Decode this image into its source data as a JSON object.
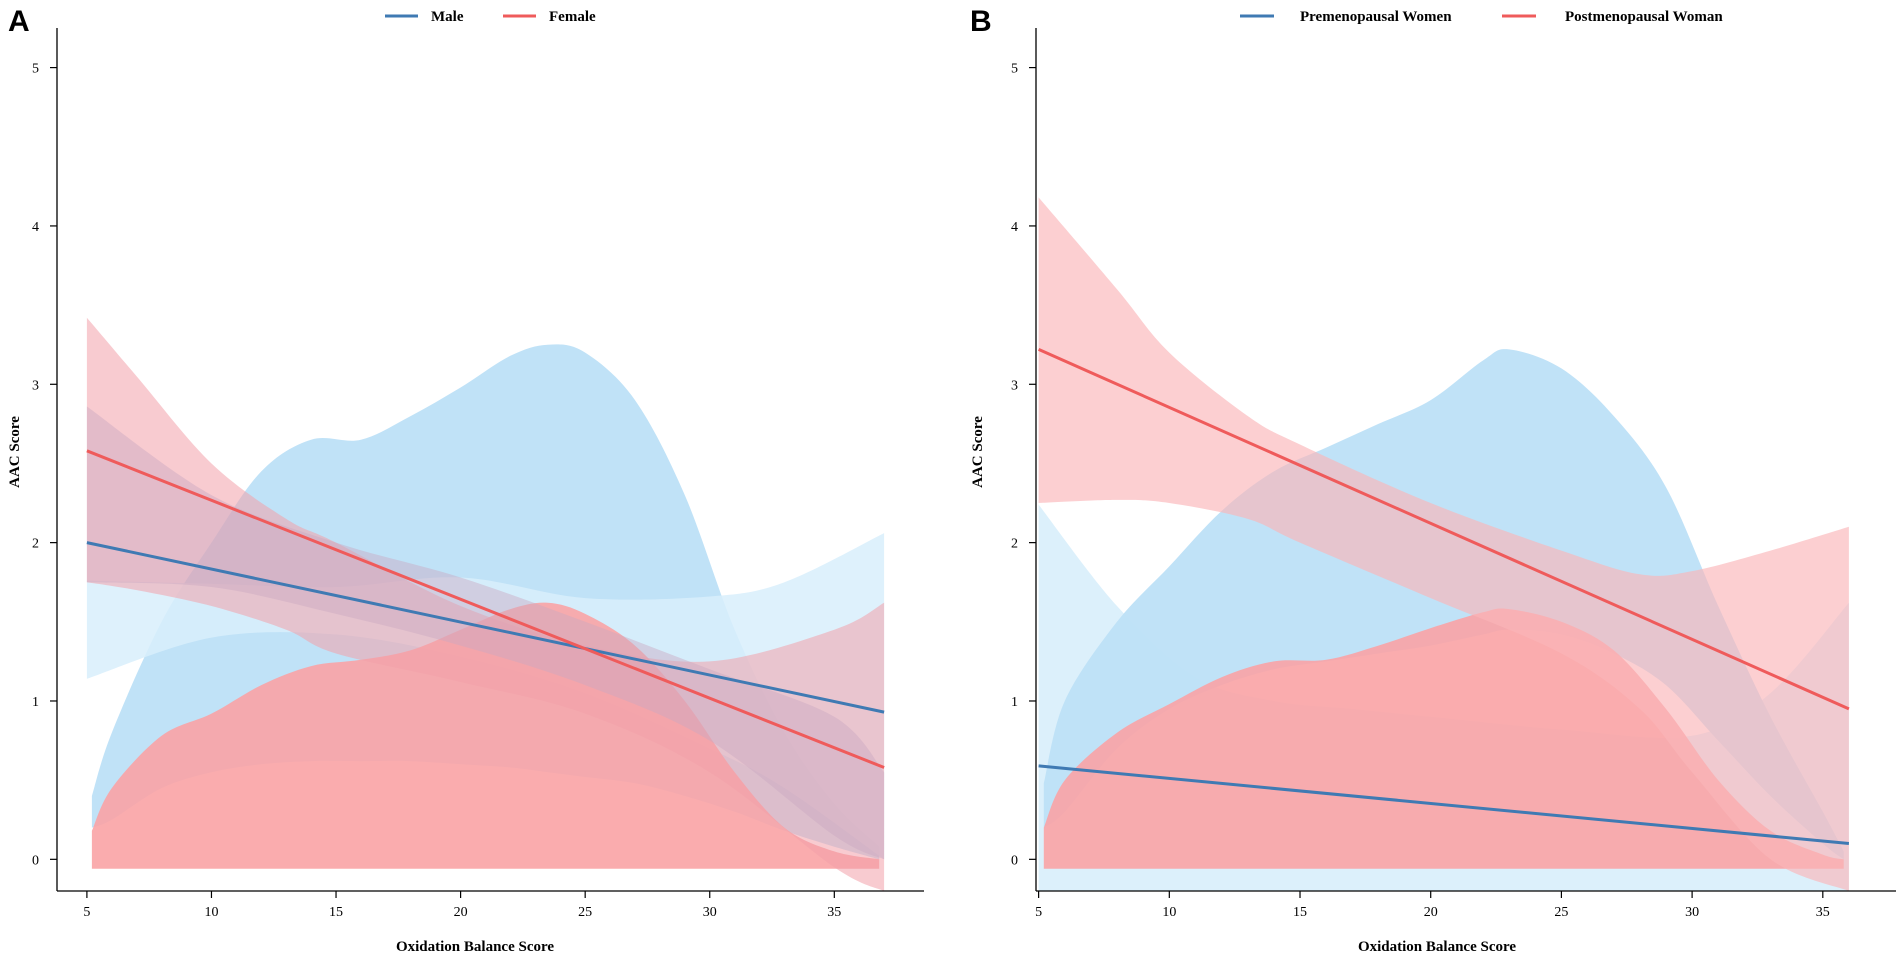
{
  "colors": {
    "blue_line": "#3f7ab3",
    "red_line": "#ef5b5b",
    "blue_fill": "#bde0f7",
    "blue_fill_light": "#d8eefb",
    "red_fill": "#f9a3a5",
    "red_fill_light": "#fcc3c4"
  },
  "chart_data": [
    {
      "type": "line",
      "panel_label": "A",
      "title": "",
      "xlabel": "Oxidation Balance Score",
      "ylabel": "AAC Score",
      "xlim": [
        3.8,
        38.6
      ],
      "ylim": [
        -0.2,
        5.25
      ],
      "xticks": [
        5,
        10,
        15,
        20,
        25,
        30,
        35
      ],
      "yticks": [
        0,
        1,
        2,
        3,
        4,
        5
      ],
      "legend": {
        "position": "top-center",
        "entries": [
          {
            "label": "Male",
            "color": "#3f7ab3"
          },
          {
            "label": "Female",
            "color": "#ef5b5b"
          }
        ]
      },
      "series": [
        {
          "name": "Male",
          "color": "#3f7ab3",
          "x": [
            5,
            37
          ],
          "y": [
            2.0,
            0.93
          ]
        },
        {
          "name": "Female",
          "color": "#ef5b5b",
          "x": [
            5,
            37
          ],
          "y": [
            2.58,
            0.58
          ]
        }
      ],
      "bands": [
        {
          "name": "Male density",
          "color": "#bde0f7",
          "opacity": 0.95,
          "x": [
            5.2,
            6,
            8,
            10,
            12,
            14,
            16,
            18,
            20,
            22,
            23.5,
            25,
            27,
            29,
            31,
            33,
            35,
            36.8
          ],
          "lower": [
            0.2,
            0.25,
            0.45,
            0.55,
            0.6,
            0.62,
            0.62,
            0.62,
            0.6,
            0.58,
            0.55,
            0.52,
            0.48,
            0.4,
            0.3,
            0.18,
            0.08,
            0.0
          ],
          "upper": [
            0.4,
            0.8,
            1.5,
            2.0,
            2.45,
            2.65,
            2.65,
            2.8,
            2.98,
            3.18,
            3.25,
            3.2,
            2.9,
            2.3,
            1.45,
            0.8,
            0.35,
            0.08
          ]
        },
        {
          "name": "Male CI",
          "color": "#d8eefb",
          "opacity": 0.85,
          "x": [
            5,
            10,
            15,
            20,
            25,
            30,
            33,
            37
          ],
          "lower": [
            1.14,
            1.4,
            1.42,
            1.28,
            1.05,
            0.7,
            0.45,
            0.0
          ],
          "upper": [
            1.76,
            1.74,
            1.72,
            1.78,
            1.65,
            1.66,
            1.75,
            2.06
          ]
        },
        {
          "name": "Female density",
          "color": "#f9a3a5",
          "opacity": 0.9,
          "x": [
            5.2,
            6,
            8,
            10,
            12,
            14,
            16,
            18,
            20,
            22,
            23.5,
            25,
            27,
            29,
            31,
            33,
            35,
            36.8
          ],
          "lower": [
            -0.06,
            -0.06,
            -0.06,
            -0.06,
            -0.06,
            -0.06,
            -0.06,
            -0.06,
            -0.06,
            -0.06,
            -0.06,
            -0.06,
            -0.06,
            -0.06,
            -0.06,
            -0.06,
            -0.06,
            -0.06
          ],
          "upper": [
            0.18,
            0.45,
            0.78,
            0.92,
            1.1,
            1.22,
            1.26,
            1.32,
            1.45,
            1.58,
            1.62,
            1.55,
            1.35,
            1.0,
            0.55,
            0.2,
            0.05,
            0.0
          ]
        },
        {
          "name": "Female CI",
          "color": "#f3a0aa",
          "opacity": 0.55,
          "x": [
            5,
            7,
            10,
            13,
            15,
            20,
            25,
            30,
            35,
            37
          ],
          "lower": [
            1.75,
            1.7,
            1.6,
            1.45,
            1.3,
            1.12,
            0.92,
            0.55,
            -0.05,
            -0.2
          ],
          "upper": [
            3.42,
            3.05,
            2.5,
            2.15,
            2.0,
            1.6,
            1.35,
            1.25,
            1.45,
            1.62
          ]
        },
        {
          "name": "Male CI overlay",
          "color": "#c9a8c0",
          "opacity": 0.45,
          "x": [
            5,
            10,
            15,
            20,
            25,
            30,
            35,
            37
          ],
          "lower": [
            1.75,
            1.72,
            1.55,
            1.35,
            1.1,
            0.75,
            0.15,
            0.0
          ],
          "upper": [
            2.86,
            2.3,
            2.0,
            1.78,
            1.5,
            1.2,
            0.9,
            0.55
          ]
        }
      ]
    },
    {
      "type": "line",
      "panel_label": "B",
      "title": "",
      "xlabel": "Oxidation Balance Score",
      "ylabel": "AAC Score",
      "xlim": [
        4.9,
        37.8
      ],
      "ylim": [
        -0.2,
        5.25
      ],
      "xticks": [
        5,
        10,
        15,
        20,
        25,
        30,
        35
      ],
      "yticks": [
        0,
        1,
        2,
        3,
        4,
        5
      ],
      "legend": {
        "position": "top-center",
        "entries": [
          {
            "label": "Premenopausal Women",
            "color": "#3f7ab3"
          },
          {
            "label": "Postmenopausal Woman",
            "color": "#ef5b5b"
          }
        ]
      },
      "series": [
        {
          "name": "Premenopausal Women",
          "color": "#3f7ab3",
          "x": [
            5,
            36
          ],
          "y": [
            0.59,
            0.1
          ]
        },
        {
          "name": "Postmenopausal Woman",
          "color": "#ef5b5b",
          "x": [
            5,
            36
          ],
          "y": [
            3.22,
            0.95
          ]
        }
      ],
      "bands": [
        {
          "name": "Premenopausal CI",
          "color": "#d8eefb",
          "opacity": 0.9,
          "x": [
            5,
            8,
            11,
            14,
            17,
            20,
            25,
            30,
            33,
            36
          ],
          "lower": [
            -0.2,
            -0.2,
            -0.2,
            -0.2,
            -0.2,
            -0.2,
            -0.2,
            -0.2,
            -0.2,
            -0.2
          ],
          "upper": [
            2.24,
            1.6,
            1.15,
            1.0,
            0.95,
            0.9,
            0.82,
            0.78,
            1.05,
            1.62
          ]
        },
        {
          "name": "Premenopausal density",
          "color": "#bde0f7",
          "opacity": 0.95,
          "x": [
            5.2,
            6,
            8,
            10,
            12,
            14,
            16,
            18,
            20,
            22,
            23,
            25,
            27,
            29,
            31,
            33,
            35,
            35.8
          ],
          "lower": [
            0.2,
            0.3,
            0.7,
            0.95,
            1.1,
            1.2,
            1.25,
            1.3,
            1.35,
            1.42,
            1.45,
            1.42,
            1.3,
            1.1,
            0.75,
            0.4,
            0.1,
            0.0
          ],
          "upper": [
            0.48,
            1.0,
            1.5,
            1.85,
            2.2,
            2.45,
            2.6,
            2.75,
            2.9,
            3.15,
            3.22,
            3.1,
            2.8,
            2.35,
            1.6,
            0.9,
            0.3,
            0.05
          ]
        },
        {
          "name": "Postmenopausal density",
          "color": "#f9a3a5",
          "opacity": 0.9,
          "x": [
            5.2,
            6,
            8,
            10,
            12,
            14,
            16,
            18,
            20,
            22,
            23,
            25,
            27,
            29,
            31,
            33,
            35,
            35.8
          ],
          "lower": [
            -0.06,
            -0.06,
            -0.06,
            -0.06,
            -0.06,
            -0.06,
            -0.06,
            -0.06,
            -0.06,
            -0.06,
            -0.06,
            -0.06,
            -0.06,
            -0.06,
            -0.06,
            -0.06,
            -0.06,
            -0.06
          ],
          "upper": [
            0.2,
            0.5,
            0.8,
            0.98,
            1.15,
            1.25,
            1.26,
            1.35,
            1.46,
            1.56,
            1.58,
            1.5,
            1.32,
            0.95,
            0.5,
            0.18,
            0.03,
            0.0
          ]
        },
        {
          "name": "Postmenopausal CI",
          "color": "#fbb6b9",
          "opacity": 0.65,
          "x": [
            5,
            8,
            10,
            13,
            15,
            20,
            25,
            28,
            30,
            33,
            36
          ],
          "lower": [
            2.25,
            2.27,
            2.25,
            2.15,
            2.0,
            1.65,
            1.3,
            0.95,
            0.55,
            0.0,
            -0.2
          ],
          "upper": [
            4.18,
            3.6,
            3.2,
            2.8,
            2.62,
            2.25,
            1.95,
            1.8,
            1.82,
            1.95,
            2.1
          ]
        }
      ]
    }
  ]
}
